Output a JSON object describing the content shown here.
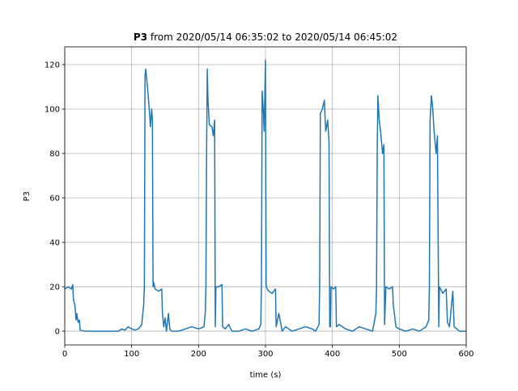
{
  "chart_data": {
    "type": "line",
    "title_name": "P3",
    "title": "from 2020/05/14 06:35:02 to 2020/05/14 06:45:02",
    "xlabel": "time (s)",
    "ylabel": "P3",
    "xlim": [
      0,
      600
    ],
    "ylim": [
      -6.2,
      128
    ],
    "xticks": [
      0,
      100,
      200,
      300,
      400,
      500,
      600
    ],
    "yticks": [
      0,
      20,
      40,
      60,
      80,
      100,
      120
    ],
    "grid": true,
    "x": [
      0,
      5,
      10,
      12,
      13,
      15,
      17,
      18,
      20,
      22,
      23,
      30,
      50,
      80,
      85,
      90,
      95,
      100,
      105,
      110,
      115,
      118,
      119,
      120,
      121,
      123,
      125,
      127,
      128,
      130,
      131,
      132,
      133,
      135,
      140,
      145,
      146,
      148,
      150,
      152,
      155,
      157,
      160,
      170,
      180,
      190,
      200,
      208,
      210,
      211,
      212,
      213,
      214,
      216,
      220,
      222,
      224,
      225,
      226,
      230,
      235,
      236,
      240,
      245,
      250,
      260,
      270,
      280,
      290,
      293,
      294,
      295,
      297,
      298,
      300,
      301,
      305,
      310,
      315,
      316,
      320,
      325,
      330,
      340,
      350,
      360,
      370,
      375,
      380,
      381,
      382,
      385,
      388,
      390,
      393,
      395,
      396,
      397,
      398,
      402,
      405,
      406,
      410,
      420,
      430,
      440,
      450,
      460,
      465,
      466,
      467,
      468,
      470,
      472,
      475,
      477,
      478,
      480,
      485,
      490,
      491,
      495,
      500,
      510,
      520,
      530,
      540,
      544,
      545,
      546,
      548,
      550,
      552,
      555,
      557,
      559,
      560,
      565,
      570,
      572,
      575,
      580,
      582,
      590,
      600
    ],
    "series": [
      {
        "name": "P3",
        "color": "#1f77b4",
        "values": [
          19,
          20,
          19,
          21,
          14,
          12,
          5,
          8,
          4,
          5,
          0.5,
          0,
          0,
          0,
          1,
          0.5,
          2,
          1,
          0.5,
          1,
          3,
          12,
          20,
          115,
          118,
          112,
          105,
          97,
          92,
          100,
          95,
          20,
          22,
          19,
          18,
          19,
          8,
          2,
          6,
          0,
          8,
          1,
          0,
          0,
          1,
          2,
          1,
          2,
          8,
          20,
          80,
          118,
          105,
          93,
          92,
          88,
          95,
          2,
          20,
          20,
          21,
          2,
          1,
          3,
          0,
          0,
          1,
          0,
          1,
          3,
          20,
          108,
          98,
          90,
          122,
          20,
          18,
          17,
          19,
          2,
          8,
          0,
          2,
          0,
          1,
          2,
          1,
          0,
          3,
          20,
          98,
          100,
          104,
          90,
          95,
          85,
          2,
          2,
          20,
          19,
          20,
          2,
          3,
          1,
          0,
          2,
          1,
          0,
          8,
          20,
          80,
          106,
          95,
          90,
          80,
          84,
          3,
          20,
          19,
          20,
          12,
          2,
          1,
          0,
          1,
          0,
          2,
          5,
          20,
          95,
          106,
          100,
          90,
          80,
          88,
          2,
          20,
          17,
          19,
          4,
          2,
          18,
          2,
          0,
          0
        ]
      }
    ]
  }
}
